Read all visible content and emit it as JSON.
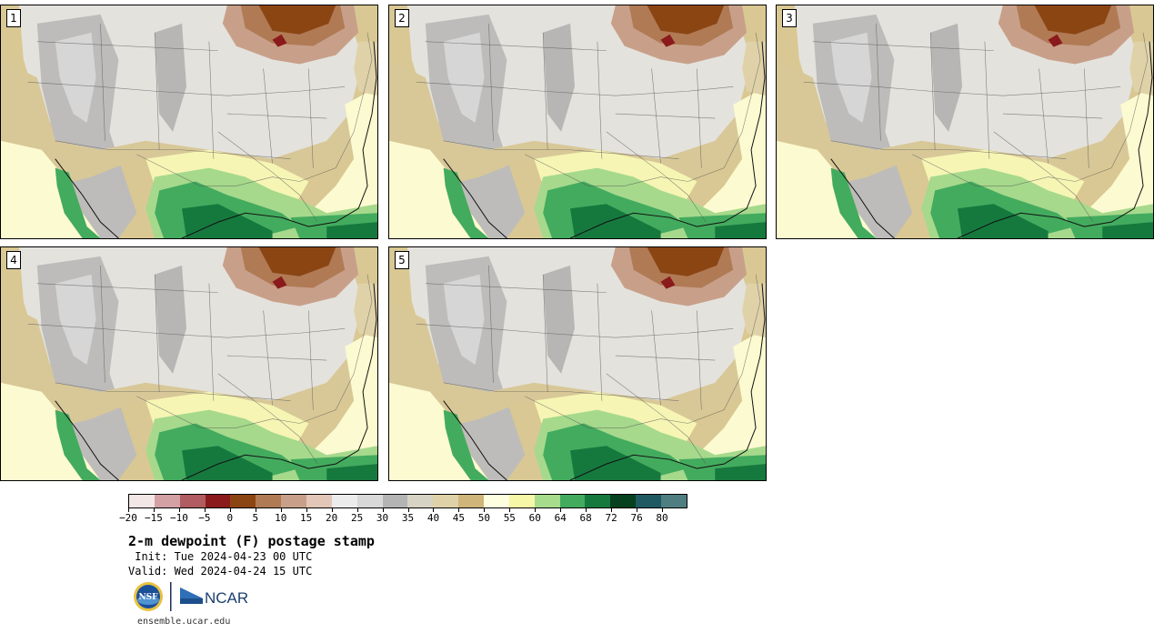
{
  "title": "2-m dewpoint (F) postage stamp",
  "init_line": " Init: Tue 2024-04-23 00 UTC",
  "valid_line": "Valid: Wed 2024-04-24 15 UTC",
  "footer_url": "ensemble.ucar.edu",
  "logos": {
    "nsf": "NSF",
    "ncar": "NCAR"
  },
  "panels": [
    {
      "label": "1"
    },
    {
      "label": "2"
    },
    {
      "label": "3"
    },
    {
      "label": "4"
    },
    {
      "label": "5"
    }
  ],
  "colorbar": {
    "colors": [
      "#f3e6e6",
      "#d3a0a4",
      "#b05c60",
      "#8b1a1c",
      "#8b4513",
      "#b07a55",
      "#c8a08a",
      "#e2c6b8",
      "#ececec",
      "#d8d8d8",
      "#b4b4b4",
      "#d6d3c4",
      "#e0d2a8",
      "#cfb57a",
      "#fdfde0",
      "#f7f7a8",
      "#a6dc8c",
      "#43ab5e",
      "#15793e",
      "#06401e",
      "#1f5a62",
      "#4f7e82"
    ],
    "tick_labels": [
      "-20",
      "-15",
      "-10",
      "-5",
      "0",
      "5",
      "10",
      "15",
      "20",
      "25",
      "30",
      "35",
      "40",
      "45",
      "50",
      "55",
      "60",
      "64",
      "68",
      "72",
      "76",
      "80"
    ]
  }
}
